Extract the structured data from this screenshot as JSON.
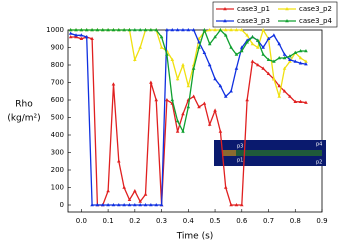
{
  "chart_data": {
    "type": "line",
    "x_label": "Time (s)",
    "y_label": [
      "Rho",
      "(kg/m²)"
    ],
    "x": [
      -0.04,
      -0.02,
      0,
      0.02,
      0.04,
      0.06,
      0.08,
      0.1,
      0.12,
      0.14,
      0.16,
      0.18,
      0.2,
      0.22,
      0.24,
      0.26,
      0.28,
      0.3,
      0.32,
      0.34,
      0.36,
      0.38,
      0.4,
      0.42,
      0.44,
      0.46,
      0.48,
      0.5,
      0.52,
      0.54,
      0.56,
      0.58,
      0.6,
      0.62,
      0.64,
      0.66,
      0.68,
      0.7,
      0.72,
      0.74,
      0.76,
      0.78,
      0.8,
      0.82,
      0.84
    ],
    "series": [
      {
        "name": "case3_p1",
        "color": "#e02020",
        "values": [
          960,
          960,
          950,
          960,
          950,
          0,
          0,
          80,
          690,
          250,
          100,
          30,
          80,
          20,
          60,
          700,
          600,
          0,
          600,
          580,
          420,
          520,
          600,
          620,
          560,
          580,
          460,
          540,
          420,
          100,
          0,
          0,
          0,
          600,
          820,
          800,
          780,
          750,
          720,
          680,
          650,
          620,
          590,
          590,
          585
        ]
      },
      {
        "name": "case3_p2",
        "color": "#f0e010",
        "values": [
          1000,
          1000,
          1000,
          1000,
          1000,
          1000,
          1000,
          1000,
          1000,
          1000,
          1000,
          1000,
          830,
          900,
          1000,
          1000,
          1000,
          900,
          880,
          830,
          720,
          800,
          680,
          800,
          950,
          990,
          1000,
          1000,
          1000,
          1000,
          1000,
          1000,
          1000,
          970,
          920,
          900,
          1000,
          950,
          720,
          620,
          780,
          820,
          870,
          840,
          820
        ]
      },
      {
        "name": "case3_p3",
        "color": "#1030e0",
        "values": [
          980,
          970,
          970,
          960,
          0,
          0,
          0,
          0,
          0,
          0,
          0,
          0,
          0,
          0,
          0,
          0,
          0,
          0,
          1000,
          1000,
          1000,
          1000,
          1000,
          1000,
          930,
          870,
          800,
          720,
          680,
          620,
          650,
          780,
          900,
          940,
          960,
          940,
          900,
          950,
          970,
          920,
          860,
          830,
          820,
          810,
          805
        ]
      },
      {
        "name": "case3_p4",
        "color": "#10a030",
        "values": [
          1000,
          1000,
          1000,
          1000,
          1000,
          1000,
          1000,
          1000,
          1000,
          1000,
          1000,
          1000,
          1000,
          1000,
          1000,
          1000,
          1000,
          960,
          860,
          600,
          480,
          420,
          560,
          780,
          900,
          1000,
          920,
          960,
          1000,
          970,
          900,
          860,
          880,
          930,
          960,
          940,
          860,
          830,
          820,
          840,
          840,
          850,
          870,
          880,
          880
        ]
      }
    ],
    "xlim": [
      -0.05,
      0.9
    ],
    "xticks": [
      {
        "value": 0,
        "label": "0.0"
      },
      0.1,
      0.2,
      0.3,
      0.4,
      0.5,
      0.6,
      0.7,
      0.8,
      0.9
    ],
    "ylim": [
      -40,
      1000
    ],
    "yticks": [
      0,
      100,
      200,
      300,
      400,
      500,
      600,
      700,
      800,
      900,
      1000
    ],
    "grid": false,
    "legend": "top-right",
    "annotations": [
      "p3",
      "p1",
      "p4",
      "p2"
    ]
  }
}
